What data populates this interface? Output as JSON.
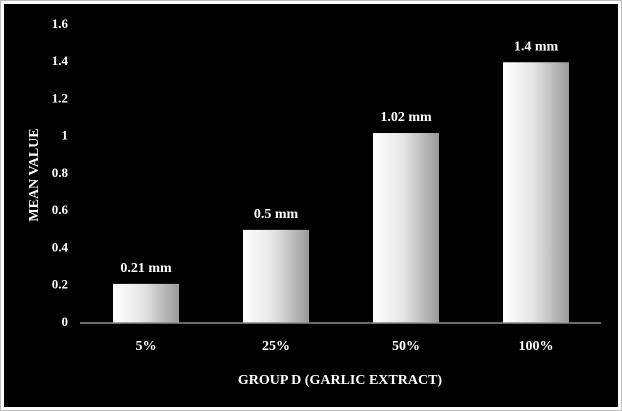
{
  "chart_data": {
    "type": "bar",
    "categories": [
      "5%",
      "25%",
      "50%",
      "100%"
    ],
    "values": [
      0.21,
      0.5,
      1.02,
      1.4
    ],
    "value_labels": [
      "0.21 mm",
      "0.5 mm",
      "1.02 mm",
      "1.4 mm"
    ],
    "xlabel": "GROUP D (GARLIC EXTRACT)",
    "ylabel": "MEAN VALUE",
    "ylim": [
      0,
      1.6
    ],
    "yticks": [
      0,
      0.2,
      0.4,
      0.6,
      0.8,
      1,
      1.2,
      1.4,
      1.6
    ],
    "grid": false
  }
}
